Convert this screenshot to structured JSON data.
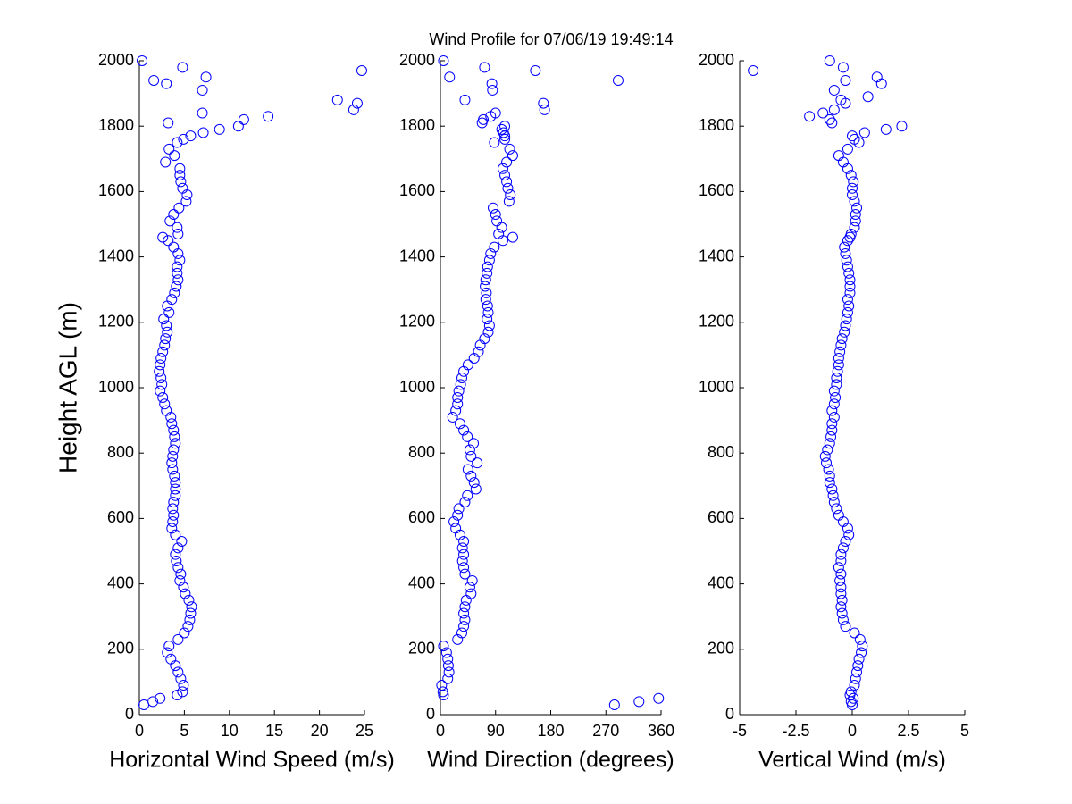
{
  "chart_data": [
    {
      "type": "scatter",
      "title": "Wind Profile for  07/06/19 19:49:14",
      "y_label": "Height AGL (m)",
      "x_label": "Horizontal Wind Speed (m/s)",
      "color": "#0000ff",
      "xlim": [
        0,
        25
      ],
      "xticks": [
        0,
        5,
        10,
        15,
        20,
        25
      ],
      "ylim": [
        0,
        2000
      ],
      "yticks": [
        0,
        200,
        400,
        600,
        800,
        1000,
        1200,
        1400,
        1600,
        1800,
        2000
      ],
      "x": [
        0.5,
        1.5,
        2.3,
        4.2,
        4.8,
        4.9,
        4.6,
        4.3,
        4.0,
        3.5,
        3.1,
        3.3,
        4.3,
        5.0,
        5.4,
        5.6,
        5.7,
        5.8,
        5.5,
        5.1,
        4.9,
        4.5,
        4.6,
        4.3,
        4.1,
        4.0,
        4.3,
        4.7,
        4.0,
        3.6,
        3.7,
        3.8,
        3.7,
        3.8,
        4.0,
        4.0,
        4.0,
        3.9,
        3.7,
        3.6,
        3.7,
        3.8,
        4.0,
        3.9,
        3.8,
        3.6,
        3.5,
        3.0,
        2.8,
        2.6,
        2.3,
        2.5,
        2.4,
        2.2,
        2.3,
        2.4,
        2.6,
        2.8,
        2.9,
        3.1,
        3.0,
        2.7,
        3.3,
        3.1,
        3.6,
        3.9,
        4.1,
        4.3,
        4.2,
        4.2,
        4.5,
        4.3,
        3.8,
        3.2,
        2.6,
        4.3,
        4.2,
        3.4,
        3.8,
        4.4,
        5.2,
        5.3,
        4.8,
        4.6,
        4.5,
        4.5,
        2.9,
        3.9,
        3.3,
        4.2,
        4.9,
        5.7,
        7.1,
        8.9,
        11.0,
        3.2,
        11.6,
        14.3,
        7.0,
        23.8,
        24.2,
        22.0,
        7.0,
        3.0,
        1.6,
        7.4,
        24.7,
        4.8,
        0.3
      ],
      "y": [
        30,
        40,
        50,
        60,
        70,
        90,
        110,
        130,
        150,
        170,
        190,
        210,
        230,
        250,
        270,
        290,
        310,
        330,
        350,
        370,
        390,
        410,
        430,
        450,
        470,
        490,
        510,
        530,
        550,
        570,
        590,
        610,
        630,
        650,
        670,
        690,
        710,
        730,
        750,
        770,
        790,
        810,
        830,
        850,
        870,
        890,
        910,
        930,
        950,
        970,
        990,
        1010,
        1030,
        1050,
        1070,
        1090,
        1110,
        1130,
        1150,
        1170,
        1190,
        1210,
        1230,
        1250,
        1270,
        1290,
        1310,
        1330,
        1350,
        1370,
        1390,
        1410,
        1430,
        1450,
        1460,
        1470,
        1490,
        1510,
        1530,
        1550,
        1570,
        1590,
        1610,
        1630,
        1650,
        1670,
        1690,
        1710,
        1730,
        1750,
        1760,
        1770,
        1780,
        1790,
        1800,
        1810,
        1820,
        1830,
        1840,
        1850,
        1870,
        1880,
        1910,
        1930,
        1940,
        1950,
        1970,
        1980,
        2000
      ]
    },
    {
      "type": "scatter",
      "x_label": "Wind Direction (degrees)",
      "color": "#0000ff",
      "xlim": [
        0,
        360
      ],
      "xticks": [
        0,
        90,
        180,
        270,
        360
      ],
      "ylim": [
        0,
        2000
      ],
      "yticks": [
        0,
        200,
        400,
        600,
        800,
        1000,
        1200,
        1400,
        1600,
        1800,
        2000
      ],
      "x": [
        284,
        324,
        356,
        5,
        4,
        2,
        12,
        14,
        13,
        12,
        10,
        5,
        28,
        35,
        38,
        40,
        38,
        40,
        42,
        50,
        48,
        52,
        40,
        38,
        36,
        38,
        36,
        38,
        32,
        25,
        22,
        28,
        30,
        40,
        44,
        58,
        55,
        50,
        45,
        60,
        50,
        48,
        54,
        44,
        38,
        32,
        20,
        25,
        28,
        28,
        30,
        33,
        35,
        38,
        45,
        55,
        62,
        65,
        72,
        78,
        80,
        76,
        78,
        77,
        74,
        75,
        73,
        74,
        76,
        77,
        80,
        82,
        88,
        102,
        118,
        95,
        100,
        92,
        90,
        86,
        112,
        114,
        110,
        108,
        105,
        102,
        108,
        118,
        113,
        88,
        105,
        105,
        103,
        100,
        105,
        68,
        70,
        82,
        90,
        170,
        168,
        40,
        85,
        84,
        290,
        15,
        155,
        72,
        5
      ],
      "y": [
        30,
        40,
        50,
        60,
        70,
        90,
        110,
        130,
        150,
        170,
        190,
        210,
        230,
        250,
        270,
        290,
        310,
        330,
        350,
        370,
        390,
        410,
        430,
        450,
        470,
        490,
        510,
        530,
        550,
        570,
        590,
        610,
        630,
        650,
        670,
        690,
        710,
        730,
        750,
        770,
        790,
        810,
        830,
        850,
        870,
        890,
        910,
        930,
        950,
        970,
        990,
        1010,
        1030,
        1050,
        1070,
        1090,
        1110,
        1130,
        1150,
        1170,
        1190,
        1210,
        1230,
        1250,
        1270,
        1290,
        1310,
        1330,
        1350,
        1370,
        1390,
        1410,
        1430,
        1450,
        1460,
        1470,
        1490,
        1510,
        1530,
        1550,
        1570,
        1590,
        1610,
        1630,
        1650,
        1670,
        1690,
        1710,
        1730,
        1750,
        1760,
        1770,
        1780,
        1790,
        1800,
        1810,
        1820,
        1830,
        1840,
        1850,
        1870,
        1880,
        1910,
        1930,
        1940,
        1950,
        1970,
        1980,
        2000
      ]
    },
    {
      "type": "scatter",
      "x_label": "Vertical Wind (m/s)",
      "color": "#0000ff",
      "xlim": [
        -5,
        5
      ],
      "xticks": [
        -5,
        -2.5,
        0,
        2.5,
        5
      ],
      "ylim": [
        0,
        2000
      ],
      "yticks": [
        0,
        200,
        400,
        600,
        800,
        1000,
        1200,
        1400,
        1600,
        1800,
        2000
      ],
      "x": [
        0.0,
        -0.05,
        0.05,
        -0.1,
        -0.05,
        0.1,
        0.15,
        0.2,
        0.25,
        0.3,
        0.4,
        0.45,
        0.35,
        0.1,
        -0.3,
        -0.4,
        -0.45,
        -0.5,
        -0.45,
        -0.5,
        -0.5,
        -0.55,
        -0.5,
        -0.6,
        -0.5,
        -0.5,
        -0.4,
        -0.3,
        -0.15,
        -0.2,
        -0.4,
        -0.6,
        -0.7,
        -0.8,
        -0.85,
        -0.9,
        -1.0,
        -1.0,
        -1.05,
        -1.15,
        -1.2,
        -1.1,
        -1.0,
        -0.95,
        -0.9,
        -0.9,
        -0.8,
        -0.9,
        -0.8,
        -0.75,
        -0.8,
        -0.7,
        -0.7,
        -0.65,
        -0.6,
        -0.6,
        -0.55,
        -0.5,
        -0.45,
        -0.35,
        -0.3,
        -0.25,
        -0.2,
        -0.15,
        -0.2,
        -0.1,
        -0.1,
        -0.1,
        -0.15,
        -0.2,
        -0.25,
        -0.3,
        -0.35,
        -0.2,
        -0.1,
        -0.05,
        0.1,
        0.15,
        0.15,
        0.2,
        0.1,
        0.0,
        0.0,
        0.05,
        -0.05,
        -0.2,
        -0.4,
        -0.6,
        -0.2,
        0.3,
        0.1,
        0.0,
        0.55,
        1.5,
        2.2,
        -0.9,
        -1.0,
        -1.9,
        -1.3,
        -0.8,
        -0.3,
        -0.5,
        0.7,
        -0.8,
        1.3,
        -0.3,
        1.1,
        -4.4,
        -0.4,
        -1.0
      ],
      "y": [
        30,
        40,
        50,
        60,
        70,
        90,
        110,
        130,
        150,
        170,
        190,
        210,
        230,
        250,
        270,
        290,
        310,
        330,
        350,
        370,
        390,
        410,
        430,
        450,
        470,
        490,
        510,
        530,
        550,
        570,
        590,
        610,
        630,
        650,
        670,
        690,
        710,
        730,
        750,
        770,
        790,
        810,
        830,
        850,
        870,
        890,
        910,
        930,
        950,
        970,
        990,
        1010,
        1030,
        1050,
        1070,
        1090,
        1110,
        1130,
        1150,
        1170,
        1190,
        1210,
        1230,
        1250,
        1270,
        1290,
        1310,
        1330,
        1350,
        1370,
        1390,
        1410,
        1430,
        1450,
        1460,
        1470,
        1490,
        1510,
        1530,
        1550,
        1570,
        1590,
        1610,
        1630,
        1650,
        1670,
        1690,
        1710,
        1730,
        1750,
        1760,
        1770,
        1780,
        1790,
        1800,
        1810,
        1820,
        1830,
        1840,
        1850,
        1870,
        1880,
        1890,
        1910,
        1930,
        1940,
        1950,
        1970,
        1980,
        2000
      ]
    }
  ]
}
